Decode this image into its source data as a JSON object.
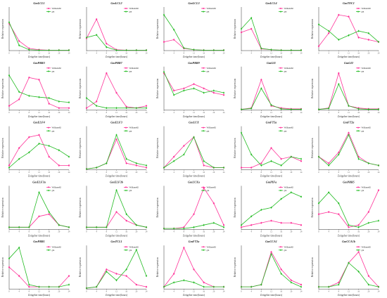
{
  "figure": {
    "legend_labels": [
      "Williams82",
      "gm"
    ],
    "xlabel": "Zeitgeber time(hours)",
    "ylabel": "Relative expression",
    "xticks": [
      "0",
      "4",
      "8",
      "12",
      "16",
      "20",
      "24"
    ],
    "colors": {
      "Williams82": "#ff3399",
      "gm": "#22bb22"
    }
  },
  "chart_data": [
    {
      "type": "line",
      "title": "GmLCL1",
      "x": [
        0,
        4,
        8,
        12,
        16,
        20,
        24
      ],
      "ylim": [
        0,
        1.0
      ],
      "series": [
        {
          "name": "Williams82",
          "values": [
            0.62,
            0.22,
            0.05,
            0.02,
            0.01,
            0.01,
            0.01
          ]
        },
        {
          "name": "gm",
          "values": [
            0.65,
            0.12,
            0.02,
            0.01,
            0.01,
            0.01,
            0.01
          ]
        }
      ]
    },
    {
      "type": "line",
      "title": "GmLCL2",
      "x": [
        0,
        4,
        8,
        12,
        16,
        20,
        24
      ],
      "ylim": [
        0,
        1.0
      ],
      "series": [
        {
          "name": "Williams82",
          "values": [
            0.28,
            0.72,
            0.16,
            0.02,
            0.01,
            0.01,
            0.01
          ]
        },
        {
          "name": "gm",
          "values": [
            0.3,
            0.36,
            0.08,
            0.01,
            0.01,
            0.01,
            0.01
          ]
        }
      ]
    },
    {
      "type": "line",
      "title": "GmLCL3",
      "x": [
        0,
        4,
        8,
        12,
        16,
        20,
        24
      ],
      "ylim": [
        0,
        1.0
      ],
      "series": [
        {
          "name": "Williams82",
          "values": [
            0.2,
            0.25,
            0.05,
            0.02,
            0.01,
            0.01,
            0.01
          ]
        },
        {
          "name": "gm",
          "values": [
            0.82,
            0.48,
            0.06,
            0.02,
            0.01,
            0.01,
            0.01
          ]
        }
      ]
    },
    {
      "type": "line",
      "title": "GmLCL4",
      "x": [
        0,
        4,
        8,
        12,
        16,
        20,
        24
      ],
      "ylim": [
        0,
        1.0
      ],
      "series": [
        {
          "name": "Williams82",
          "values": [
            0.42,
            0.5,
            0.04,
            0.02,
            0.01,
            0.01,
            0.01
          ]
        },
        {
          "name": "gm",
          "values": [
            0.5,
            0.75,
            0.05,
            0.02,
            0.01,
            0.01,
            0.01
          ]
        }
      ]
    },
    {
      "type": "line",
      "title": "GmTOC1",
      "x": [
        0,
        4,
        8,
        12,
        16,
        20,
        24
      ],
      "ylim": [
        0,
        1.0
      ],
      "series": [
        {
          "name": "Williams82",
          "values": [
            0.1,
            0.4,
            0.82,
            0.78,
            0.3,
            0.25,
            0.2
          ]
        },
        {
          "name": "gm",
          "values": [
            0.6,
            0.45,
            0.25,
            0.35,
            0.45,
            0.4,
            0.2
          ]
        }
      ]
    },
    {
      "type": "line",
      "title": "GmPRR3",
      "x": [
        0,
        4,
        8,
        12,
        16,
        20,
        24
      ],
      "ylim": [
        0,
        1.0
      ],
      "series": [
        {
          "name": "Williams82",
          "values": [
            0.1,
            0.25,
            0.75,
            0.7,
            0.15,
            0.05,
            0.05
          ]
        },
        {
          "name": "gm",
          "values": [
            0.8,
            0.42,
            0.33,
            0.3,
            0.28,
            0.2,
            0.18
          ]
        }
      ]
    },
    {
      "type": "line",
      "title": "GmPRR7",
      "x": [
        0,
        4,
        8,
        12,
        16,
        20,
        24
      ],
      "ylim": [
        0,
        1.0
      ],
      "series": [
        {
          "name": "Williams82",
          "values": [
            0.05,
            0.2,
            0.85,
            0.4,
            0.08,
            0.05,
            0.1
          ]
        },
        {
          "name": "gm",
          "values": [
            0.28,
            0.1,
            0.05,
            0.05,
            0.05,
            0.05,
            0.05
          ]
        }
      ]
    },
    {
      "type": "line",
      "title": "GmPRR9",
      "x": [
        0,
        4,
        8,
        12,
        16,
        20,
        24
      ],
      "ylim": [
        0,
        1.0
      ],
      "series": [
        {
          "name": "Williams82",
          "values": [
            0.85,
            0.45,
            0.5,
            0.6,
            0.5,
            0.4,
            0.35
          ]
        },
        {
          "name": "gm",
          "values": [
            0.88,
            0.35,
            0.45,
            0.5,
            0.4,
            0.45,
            0.4
          ]
        }
      ]
    },
    {
      "type": "line",
      "title": "GmGI1",
      "x": [
        0,
        4,
        8,
        12,
        16,
        20,
        24
      ],
      "ylim": [
        0,
        1.0
      ],
      "series": [
        {
          "name": "Williams82",
          "values": [
            0.02,
            0.05,
            0.7,
            0.1,
            0.05,
            0.03,
            0.03
          ]
        },
        {
          "name": "gm",
          "values": [
            0.02,
            0.04,
            0.5,
            0.12,
            0.03,
            0.02,
            0.02
          ]
        }
      ]
    },
    {
      "type": "line",
      "title": "GmGI2",
      "x": [
        0,
        4,
        8,
        12,
        16,
        20,
        24
      ],
      "ylim": [
        0,
        1.0
      ],
      "series": [
        {
          "name": "Williams82",
          "values": [
            0.02,
            0.05,
            0.85,
            0.1,
            0.05,
            0.03,
            0.03
          ]
        },
        {
          "name": "gm",
          "values": [
            0.02,
            0.04,
            0.6,
            0.1,
            0.03,
            0.02,
            0.02
          ]
        }
      ]
    },
    {
      "type": "line",
      "title": "GmELF4",
      "x": [
        0,
        4,
        8,
        12,
        16,
        20,
        24
      ],
      "ylim": [
        0,
        1.0
      ],
      "series": [
        {
          "name": "Williams82",
          "values": [
            0.1,
            0.5,
            0.75,
            0.8,
            0.3,
            0.1,
            0.1
          ]
        },
        {
          "name": "gm",
          "values": [
            0.05,
            0.25,
            0.4,
            0.6,
            0.55,
            0.45,
            0.3
          ]
        }
      ]
    },
    {
      "type": "line",
      "title": "GmELF3",
      "x": [
        0,
        4,
        8,
        12,
        16,
        20,
        24
      ],
      "ylim": [
        0,
        1.0
      ],
      "series": [
        {
          "name": "Williams82",
          "values": [
            0.02,
            0.05,
            0.15,
            0.7,
            0.15,
            0.1,
            0.05
          ]
        },
        {
          "name": "gm",
          "values": [
            0.02,
            0.05,
            0.15,
            0.8,
            0.25,
            0.15,
            0.1
          ]
        }
      ]
    },
    {
      "type": "line",
      "title": "GmLUX",
      "x": [
        0,
        4,
        8,
        12,
        16,
        20,
        24
      ],
      "ylim": [
        0,
        1.0
      ],
      "series": [
        {
          "name": "Williams82",
          "values": [
            0.05,
            0.3,
            0.55,
            0.75,
            0.1,
            0.05,
            0.05
          ]
        },
        {
          "name": "gm",
          "values": [
            0.05,
            0.2,
            0.35,
            0.75,
            0.2,
            0.05,
            0.05
          ]
        }
      ]
    },
    {
      "type": "line",
      "title": "GmFT5a",
      "x": [
        0,
        4,
        8,
        12,
        16,
        20,
        24
      ],
      "ylim": [
        0,
        1.0
      ],
      "series": [
        {
          "name": "Williams82",
          "values": [
            0.05,
            0.05,
            0.15,
            0.5,
            0.25,
            0.3,
            0.2
          ]
        },
        {
          "name": "gm",
          "values": [
            0.85,
            0.35,
            0.1,
            0.2,
            0.1,
            0.3,
            0.25
          ]
        }
      ]
    },
    {
      "type": "line",
      "title": "GmFT2a",
      "x": [
        0,
        4,
        8,
        12,
        16,
        20,
        24
      ],
      "ylim": [
        0,
        1.0
      ],
      "series": [
        {
          "name": "Williams82",
          "values": [
            0.3,
            0.15,
            0.4,
            0.85,
            0.3,
            0.15,
            0.1
          ]
        },
        {
          "name": "gm",
          "values": [
            0.3,
            0.1,
            0.35,
            0.8,
            0.25,
            0.15,
            0.1
          ]
        }
      ]
    },
    {
      "type": "line",
      "title": "GmELF3a",
      "x": [
        0,
        4,
        8,
        12,
        16,
        20,
        24
      ],
      "ylim": [
        0,
        1.0
      ],
      "series": [
        {
          "name": "Williams82",
          "values": [
            0.05,
            0.05,
            0.05,
            0.3,
            0.35,
            0.1,
            0.05
          ]
        },
        {
          "name": "gm",
          "values": [
            0.05,
            0.05,
            0.05,
            0.85,
            0.4,
            0.1,
            0.05
          ]
        }
      ]
    },
    {
      "type": "line",
      "title": "GmELF3b",
      "x": [
        0,
        4,
        8,
        12,
        16,
        20,
        24
      ],
      "ylim": [
        0,
        1.0
      ],
      "series": [
        {
          "name": "Williams82",
          "values": [
            0.05,
            0.05,
            0.05,
            0.4,
            0.2,
            0.1,
            0.05
          ]
        },
        {
          "name": "gm",
          "values": [
            0.05,
            0.05,
            0.05,
            0.9,
            0.35,
            0.1,
            0.05
          ]
        }
      ]
    },
    {
      "type": "line",
      "title": "GmLUXa",
      "x": [
        0,
        4,
        8,
        12,
        16,
        20,
        24
      ],
      "ylim": [
        0,
        1.0
      ],
      "series": [
        {
          "name": "Williams82",
          "values": [
            0.02,
            0.02,
            0.05,
            0.35,
            0.95,
            0.6,
            0.1
          ]
        },
        {
          "name": "gm",
          "values": [
            0.02,
            0.02,
            0.02,
            0.05,
            0.1,
            0.15,
            0.05
          ]
        }
      ]
    },
    {
      "type": "line",
      "title": "GmPIFa",
      "x": [
        0,
        4,
        8,
        12,
        16,
        20,
        24
      ],
      "ylim": [
        0,
        1.0
      ],
      "series": [
        {
          "name": "Williams82",
          "values": [
            0.05,
            0.1,
            0.15,
            0.2,
            0.15,
            0.15,
            0.1
          ]
        },
        {
          "name": "gm",
          "values": [
            0.1,
            0.3,
            0.45,
            0.5,
            0.7,
            0.85,
            0.75
          ]
        }
      ]
    },
    {
      "type": "line",
      "title": "GmPRR5",
      "x": [
        0,
        4,
        8,
        12,
        16,
        20,
        24
      ],
      "ylim": [
        0,
        1.0
      ],
      "series": [
        {
          "name": "Williams82",
          "values": [
            0.35,
            0.4,
            0.35,
            0.05,
            0.1,
            0.4,
            0.9
          ]
        },
        {
          "name": "gm",
          "values": [
            0.6,
            0.85,
            0.6,
            0.1,
            0.05,
            0.15,
            0.2
          ]
        }
      ]
    },
    {
      "type": "line",
      "title": "GmPRR1",
      "x": [
        0,
        4,
        8,
        12,
        16,
        20,
        24
      ],
      "ylim": [
        0,
        1.0
      ],
      "series": [
        {
          "name": "Williams82",
          "values": [
            0.5,
            0.3,
            0.05,
            0.05,
            0.05,
            0.05,
            0.3
          ]
        },
        {
          "name": "gm",
          "values": [
            0.7,
            0.95,
            0.1,
            0.05,
            0.05,
            0.05,
            0.1
          ]
        }
      ]
    },
    {
      "type": "line",
      "title": "GmTCL1",
      "x": [
        0,
        4,
        8,
        12,
        16,
        20,
        24
      ],
      "ylim": [
        0,
        1.0
      ],
      "series": [
        {
          "name": "Williams82",
          "values": [
            0.02,
            0.05,
            0.45,
            0.35,
            0.3,
            0.1,
            0.05
          ]
        },
        {
          "name": "gm",
          "values": [
            0.02,
            0.05,
            0.4,
            0.2,
            0.45,
            0.9,
            0.3
          ]
        }
      ]
    },
    {
      "type": "line",
      "title": "GmFT2a",
      "x": [
        0,
        4,
        8,
        12,
        16,
        20,
        24
      ],
      "ylim": [
        0,
        1.0
      ],
      "series": [
        {
          "name": "Williams82",
          "values": [
            0.05,
            0.35,
            0.95,
            0.45,
            0.15,
            0.05,
            0.05
          ]
        },
        {
          "name": "gm",
          "values": [
            0.05,
            0.15,
            0.2,
            0.15,
            0.05,
            0.05,
            0.05
          ]
        }
      ]
    },
    {
      "type": "line",
      "title": "GmCCA1",
      "x": [
        0,
        4,
        8,
        12,
        16,
        20,
        24
      ],
      "ylim": [
        0,
        1.0
      ],
      "series": [
        {
          "name": "Williams82",
          "values": [
            0.05,
            0.05,
            0.1,
            0.85,
            0.45,
            0.2,
            0.1
          ]
        },
        {
          "name": "gm",
          "values": [
            0.05,
            0.05,
            0.1,
            0.8,
            0.35,
            0.15,
            0.05
          ]
        }
      ]
    },
    {
      "type": "line",
      "title": "GmCCA1b",
      "x": [
        0,
        4,
        8,
        12,
        16,
        20,
        24
      ],
      "ylim": [
        0,
        1.0
      ],
      "series": [
        {
          "name": "Williams82",
          "values": [
            0.05,
            0.05,
            0.15,
            0.6,
            0.85,
            0.3,
            0.05
          ]
        },
        {
          "name": "gm",
          "values": [
            0.05,
            0.05,
            0.1,
            0.6,
            0.4,
            0.1,
            0.05
          ]
        }
      ]
    }
  ]
}
